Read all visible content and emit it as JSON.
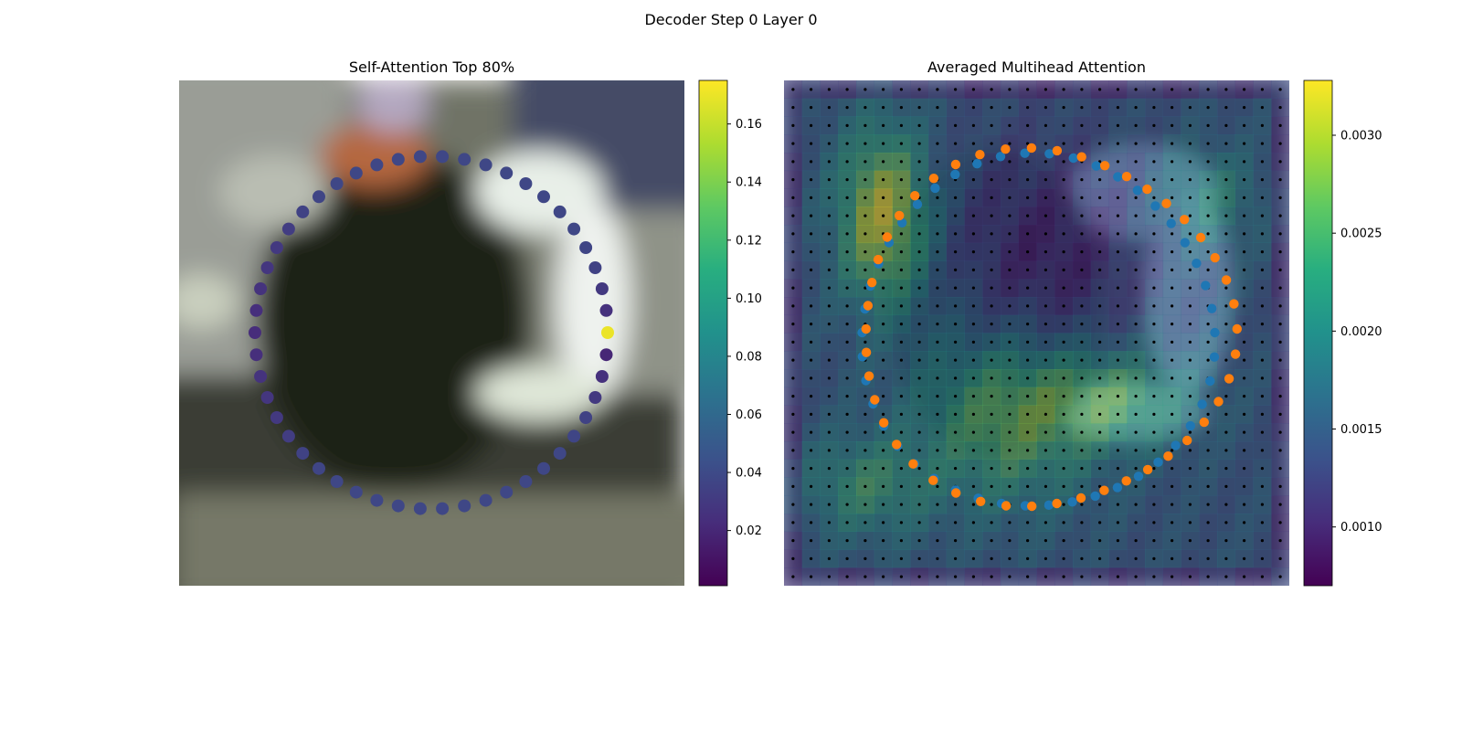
{
  "figure": {
    "suptitle": "Decoder Step 0 Layer 0"
  },
  "chart_data": [
    {
      "type": "scatter",
      "title": "Self-Attention Top 80%",
      "xlabel": "",
      "ylabel": "",
      "colormap": "viridis",
      "colorbar": {
        "range": [
          0.001,
          0.175
        ],
        "ticks": [
          0.02,
          0.04,
          0.06,
          0.08,
          0.1,
          0.12,
          0.14,
          0.16
        ],
        "tick_labels": [
          "0.02",
          "0.04",
          "0.06",
          "0.08",
          "0.10",
          "0.12",
          "0.14",
          "0.16"
        ]
      },
      "background": "blurred camera image",
      "points": {
        "count": 50,
        "values": [
          0.17,
          0.02,
          0.025,
          0.03,
          0.035,
          0.037,
          0.038,
          0.038,
          0.038,
          0.038,
          0.038,
          0.038,
          0.038,
          0.038,
          0.038,
          0.038,
          0.038,
          0.038,
          0.037,
          0.035,
          0.032,
          0.03,
          0.028,
          0.026,
          0.024,
          0.023,
          0.024,
          0.026,
          0.028,
          0.03,
          0.032,
          0.035,
          0.037,
          0.038,
          0.038,
          0.038,
          0.038,
          0.038,
          0.038,
          0.038,
          0.038,
          0.038,
          0.038,
          0.038,
          0.038,
          0.038,
          0.037,
          0.035,
          0.03,
          0.025
        ]
      }
    },
    {
      "type": "heatmap",
      "title": "Averaged Multihead Attention",
      "xlabel": "",
      "ylabel": "",
      "colormap": "viridis",
      "colorbar": {
        "range": [
          0.0007,
          0.00328
        ],
        "ticks": [
          0.001,
          0.0015,
          0.002,
          0.0025,
          0.003
        ],
        "tick_labels": [
          "0.0010",
          "0.0015",
          "0.0020",
          "0.0025",
          "0.0030"
        ]
      },
      "grid": {
        "rows": 28,
        "cols": 28
      },
      "series": [
        {
          "color": "#1f77b4"
        },
        {
          "color": "#ff7f0e"
        }
      ]
    }
  ]
}
